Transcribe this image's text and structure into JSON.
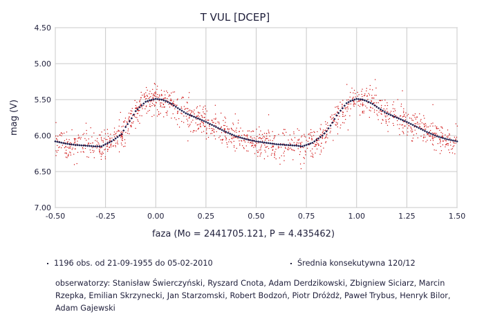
{
  "chart_data": {
    "type": "scatter",
    "title": "T VUL [DCEP]",
    "xlabel": "faza (Mo = 2441705.121, P = 4.435462)",
    "ylabel": "mag (V)",
    "xlim": [
      -0.5,
      1.5
    ],
    "ylim": [
      4.5,
      7.0
    ],
    "y_inverted": true,
    "grid": true,
    "x_ticks": [
      "-0.50",
      "-0.25",
      "0.00",
      "0.25",
      "0.50",
      "0.75",
      "1.00",
      "1.25",
      "1.50"
    ],
    "y_ticks": [
      "4.50",
      "5.00",
      "5.50",
      "6.00",
      "6.50",
      "7.00"
    ],
    "series": [
      {
        "color": "#cc0000",
        "marker": "tiny dot",
        "description_of_distribution": "scattered observations around the mean curve with spread roughly ±0.25 mag"
      },
      {
        "color": "#1a1a4a",
        "marker": "small diamond",
        "x": [
          -0.5,
          -0.45,
          -0.4,
          -0.35,
          -0.3,
          -0.27,
          -0.25,
          -0.22,
          -0.2,
          -0.17,
          -0.15,
          -0.12,
          -0.1,
          -0.07,
          -0.05,
          -0.03,
          0.0,
          0.03,
          0.05,
          0.08,
          0.1,
          0.15,
          0.2,
          0.25,
          0.3,
          0.35,
          0.4,
          0.45,
          0.5,
          0.55,
          0.6,
          0.65,
          0.7,
          0.73,
          0.75,
          0.78,
          0.8,
          0.83,
          0.85,
          0.88,
          0.9,
          0.93,
          0.95,
          0.97,
          1.0,
          1.03,
          1.05,
          1.08,
          1.1,
          1.15,
          1.2,
          1.25,
          1.3,
          1.35,
          1.4,
          1.45,
          1.5
        ],
        "y": [
          6.08,
          6.11,
          6.13,
          6.14,
          6.15,
          6.15,
          6.12,
          6.08,
          6.04,
          5.98,
          5.88,
          5.76,
          5.66,
          5.58,
          5.53,
          5.51,
          5.49,
          5.5,
          5.52,
          5.56,
          5.6,
          5.69,
          5.75,
          5.81,
          5.88,
          5.95,
          6.01,
          6.05,
          6.08,
          6.1,
          6.12,
          6.13,
          6.14,
          6.15,
          6.13,
          6.1,
          6.06,
          6.0,
          5.94,
          5.82,
          5.72,
          5.62,
          5.55,
          5.52,
          5.49,
          5.5,
          5.52,
          5.56,
          5.6,
          5.69,
          5.75,
          5.81,
          5.88,
          5.95,
          6.01,
          6.05,
          6.08
        ]
      }
    ]
  },
  "footer": {
    "obs_count": "1196 obs. od 21-09-1955 do 05-02-2010",
    "mean_info": "Średnia konsekutywna 120/12",
    "observers": "obserwatorzy: Stanisław Świerczyński, Ryszard Cnota, Adam Derdzikowski, Zbigniew Siciarz, Marcin Rzepka, Emilian Skrzynecki, Jan Starzomski, Robert Bodzoń, Piotr Dróżdż, Paweł Trybus, Henryk Bilor, Adam Gajewski"
  }
}
